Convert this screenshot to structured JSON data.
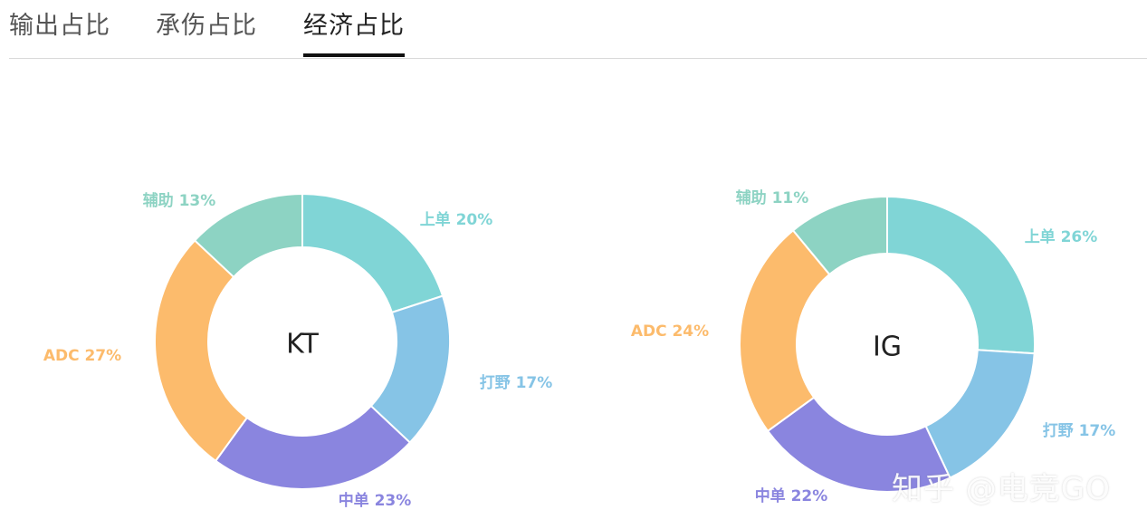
{
  "tabs": [
    {
      "label": "输出占比",
      "active": false
    },
    {
      "label": "承伤占比",
      "active": false
    },
    {
      "label": "经济占比",
      "active": true
    }
  ],
  "chart_data": [
    {
      "type": "pie",
      "title": "KT",
      "donut": true,
      "series": [
        {
          "name": "上单",
          "value": 20,
          "label": "上单 20%",
          "color": "#80D5D6"
        },
        {
          "name": "打野",
          "value": 17,
          "label": "打野 17%",
          "color": "#86C4E6"
        },
        {
          "name": "中单",
          "value": 23,
          "label": "中单 23%",
          "color": "#8A85DF"
        },
        {
          "name": "ADC",
          "value": 27,
          "label": "ADC 27%",
          "color": "#FCBB6C"
        },
        {
          "name": "辅助",
          "value": 13,
          "label": "辅助 13%",
          "color": "#8DD3C3"
        }
      ]
    },
    {
      "type": "pie",
      "title": "IG",
      "donut": true,
      "series": [
        {
          "name": "上单",
          "value": 26,
          "label": "上单 26%",
          "color": "#80D5D6"
        },
        {
          "name": "打野",
          "value": 17,
          "label": "打野 17%",
          "color": "#86C4E6"
        },
        {
          "name": "中单",
          "value": 22,
          "label": "中单 22%",
          "color": "#8A85DF"
        },
        {
          "name": "ADC",
          "value": 24,
          "label": "ADC 24%",
          "color": "#FCBB6C"
        },
        {
          "name": "辅助",
          "value": 11,
          "label": "辅助 11%",
          "color": "#8DD3C3"
        }
      ]
    }
  ],
  "watermark": "知乎 @电竞GO"
}
